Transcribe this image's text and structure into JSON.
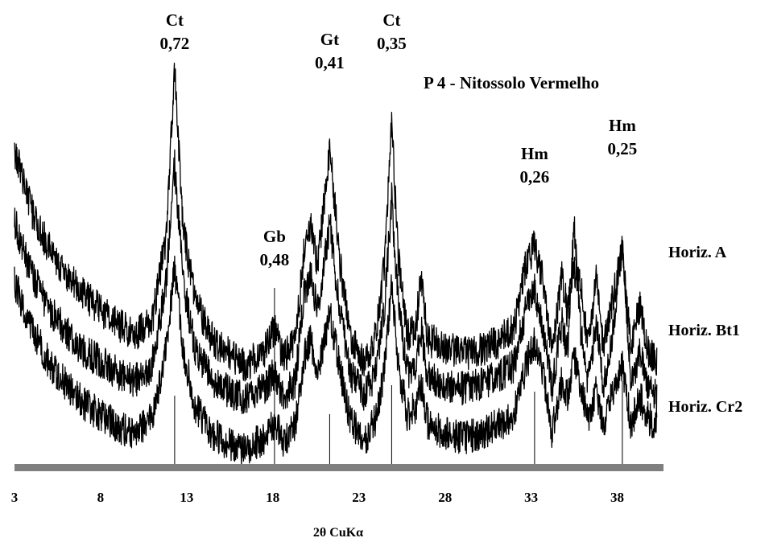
{
  "chart_data": {
    "type": "line",
    "title": "P 4 - Nitossolo Vermelho",
    "xlabel": "2θ CuKα",
    "ylabel": "",
    "xlim": [
      3,
      40.5
    ],
    "x_ticks": [
      "3",
      "8",
      "13",
      "18",
      "23",
      "28",
      "33",
      "38"
    ],
    "grid": false,
    "peaks": [
      {
        "mineral": "Ct",
        "d": "0,72",
        "x": 12.3
      },
      {
        "mineral": "Gb",
        "d": "0,48",
        "x": 18.1
      },
      {
        "mineral": "Gt",
        "d": "0,41",
        "x": 21.3
      },
      {
        "mineral": "Ct",
        "d": "0,35",
        "x": 24.9
      },
      {
        "mineral": "Hm",
        "d": "0,26",
        "x": 33.2
      },
      {
        "mineral": "Hm",
        "d": "0,25",
        "x": 38.3
      }
    ],
    "series": [
      {
        "name": "Horiz. A",
        "baseline": 0.0,
        "noise": 4.5,
        "x": [
          3,
          4,
          5,
          6,
          7,
          8,
          9,
          10,
          11,
          11.8,
          12.3,
          12.8,
          13.5,
          14.5,
          15.5,
          16.5,
          17.5,
          18.1,
          18.6,
          19.3,
          19.8,
          20.2,
          20.6,
          21.3,
          21.9,
          22.5,
          23.3,
          24.0,
          24.5,
          24.9,
          25.3,
          25.8,
          26.3,
          26.6,
          27.0,
          28.0,
          29.0,
          30.0,
          31.0,
          32.0,
          32.7,
          33.2,
          33.7,
          34.2,
          34.8,
          35.1,
          35.5,
          35.9,
          36.3,
          36.8,
          37.2,
          37.7,
          38.3,
          38.8,
          39.3,
          39.8,
          40.3
        ],
        "y": [
          27,
          43,
          53,
          60,
          65,
          69,
          73,
          76,
          72,
          50,
          5,
          48,
          67,
          77,
          81,
          84,
          80,
          74,
          82,
          78,
          54,
          46,
          58,
          26,
          57,
          76,
          84,
          76,
          56,
          20,
          56,
          76,
          74,
          61,
          77,
          79,
          81,
          80,
          78,
          74,
          57,
          52,
          62,
          80,
          60,
          70,
          58,
          64,
          78,
          60,
          80,
          67,
          54,
          80,
          68,
          80,
          83
        ]
      },
      {
        "name": "Horiz. Bt1",
        "baseline": 16.0,
        "noise": 4.5,
        "x": [
          3,
          4,
          5,
          6,
          7,
          8,
          9,
          10,
          11,
          11.8,
          12.3,
          12.8,
          13.5,
          14.5,
          15.5,
          16.5,
          17.5,
          18.1,
          18.6,
          19.3,
          19.8,
          20.2,
          20.6,
          21.3,
          21.9,
          22.5,
          23.3,
          24.0,
          24.5,
          24.9,
          25.3,
          25.8,
          26.3,
          26.6,
          27.0,
          28.0,
          29.0,
          30.0,
          31.0,
          32.0,
          32.7,
          33.2,
          33.7,
          34.2,
          34.8,
          35.1,
          35.5,
          35.9,
          36.3,
          36.8,
          37.2,
          37.7,
          38.3,
          38.8,
          39.3,
          39.8,
          40.3
        ],
        "y": [
          30,
          44,
          53,
          59,
          64,
          67,
          70,
          72,
          68,
          46,
          15,
          46,
          64,
          72,
          75,
          77,
          74,
          70,
          76,
          72,
          50,
          43,
          54,
          30,
          54,
          70,
          76,
          70,
          52,
          24,
          52,
          70,
          68,
          58,
          71,
          73,
          74,
          73,
          71,
          68,
          53,
          48,
          58,
          74,
          56,
          65,
          30,
          60,
          72,
          56,
          74,
          62,
          36,
          74,
          64,
          74,
          76
        ]
      },
      {
        "name": "Horiz. Cr2",
        "baseline": 32.0,
        "noise": 4.5,
        "x": [
          3,
          4,
          5,
          6,
          7,
          8,
          9,
          10,
          11,
          11.8,
          12.3,
          12.8,
          13.5,
          14.5,
          15.5,
          16.5,
          17.5,
          18.1,
          18.6,
          19.3,
          19.8,
          20.2,
          20.6,
          21.3,
          21.9,
          22.5,
          23.3,
          24.0,
          24.5,
          24.9,
          25.3,
          25.8,
          26.3,
          26.6,
          27.0,
          28.0,
          29.0,
          30.0,
          31.0,
          32.0,
          32.7,
          33.2,
          33.7,
          34.2,
          34.8,
          35.1,
          35.5,
          35.9,
          36.3,
          36.8,
          37.2,
          37.7,
          38.3,
          38.8,
          39.3,
          39.8,
          40.3
        ],
        "y": [
          30,
          42,
          51,
          57,
          62,
          65,
          68,
          70,
          66,
          48,
          26,
          48,
          63,
          70,
          73,
          74,
          71,
          67,
          72,
          68,
          50,
          45,
          54,
          38,
          53,
          66,
          72,
          66,
          52,
          30,
          52,
          65,
          63,
          56,
          67,
          70,
          71,
          70,
          68,
          65,
          52,
          46,
          55,
          70,
          56,
          60,
          50,
          58,
          66,
          58,
          68,
          60,
          52,
          68,
          60,
          66,
          68
        ]
      }
    ]
  }
}
